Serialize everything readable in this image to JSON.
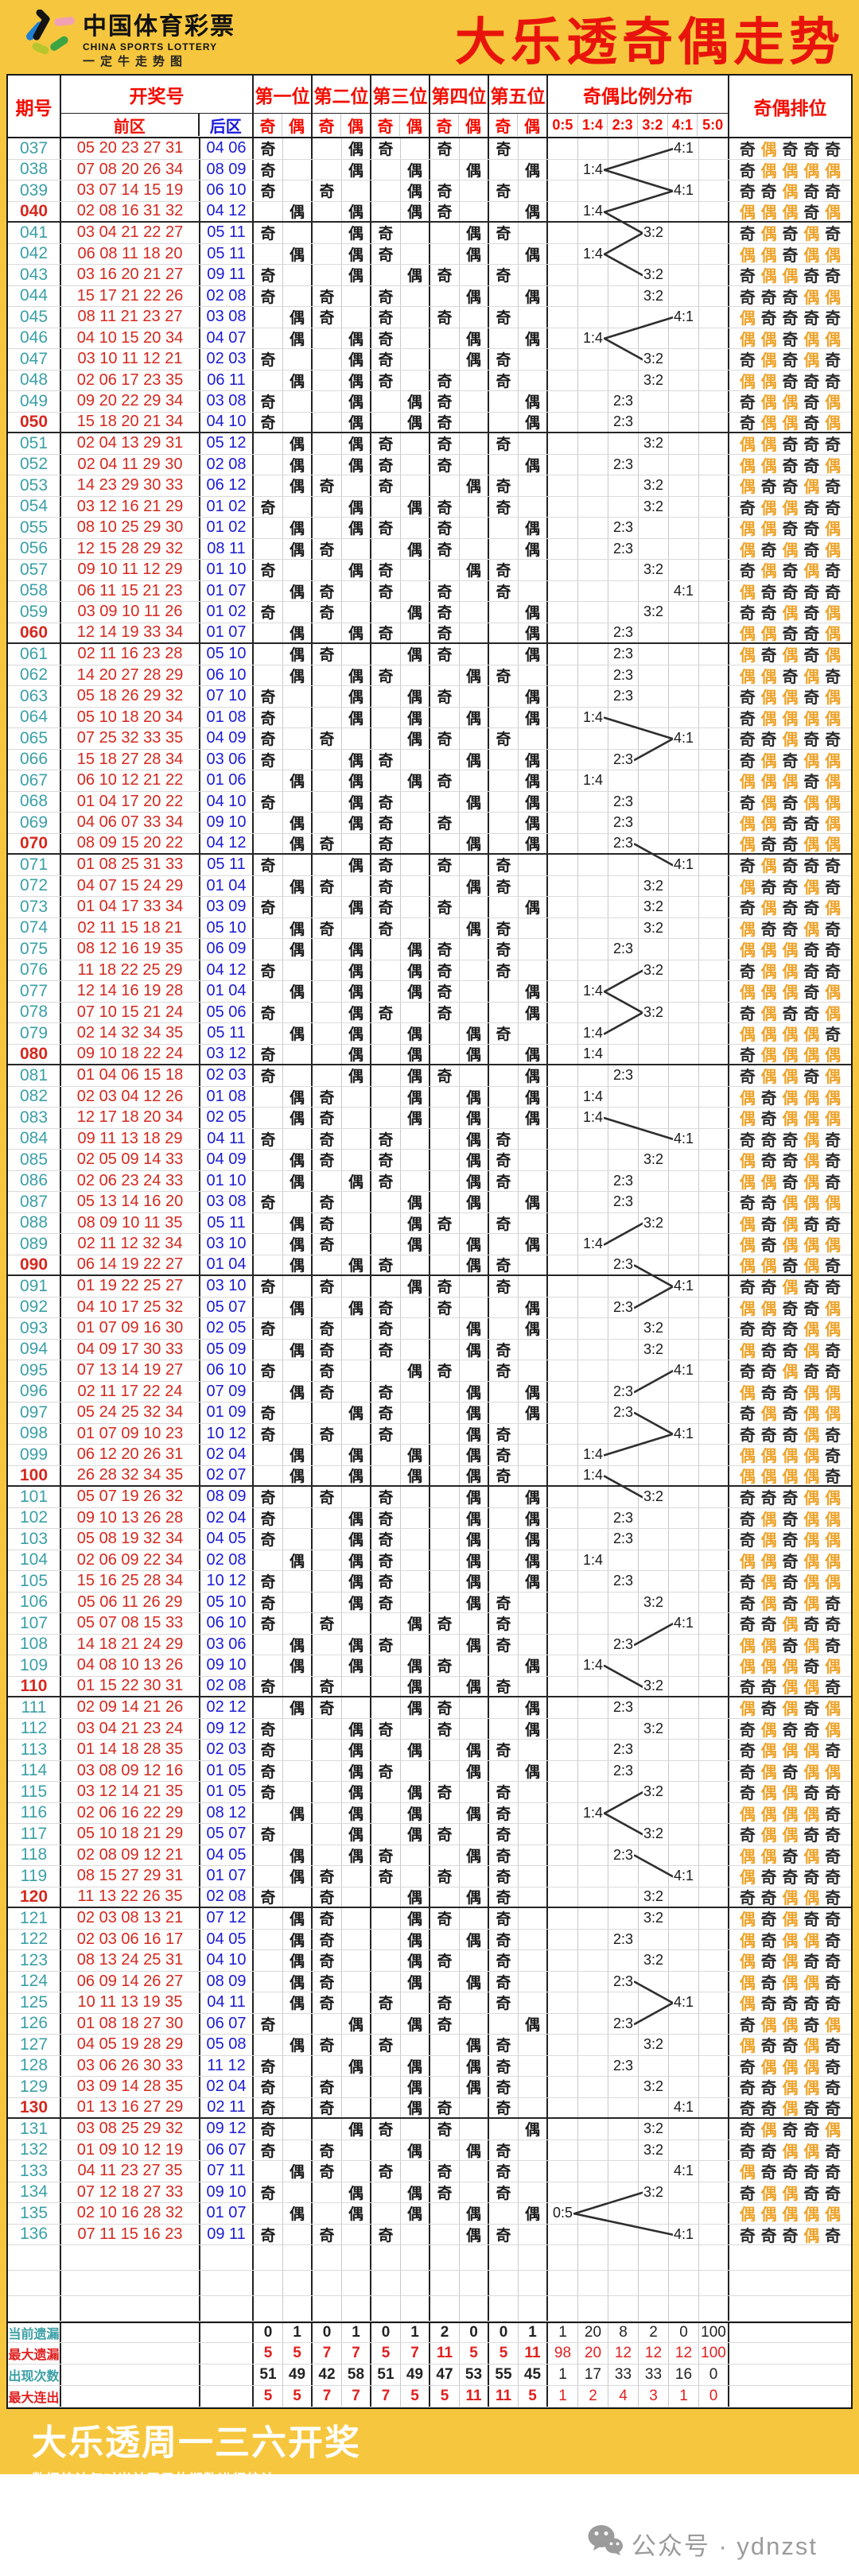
{
  "header": {
    "logo_title": "中国体育彩票",
    "logo_subtitle": "CHINA SPORTS LOTTERY",
    "logo_tagline": "一定牛走势图",
    "title": "大乐透奇偶走势"
  },
  "table": {
    "col_period": "期号",
    "col_numbers": "开奖号",
    "col_front": "前区",
    "col_back": "后区",
    "positions": [
      "第一位",
      "第二位",
      "第三位",
      "第四位",
      "第五位"
    ],
    "odd": "奇",
    "even": "偶",
    "ratio_group": "奇偶比例分布",
    "ratios": [
      "0:5",
      "1:4",
      "2:3",
      "3:2",
      "4:1",
      "5:0"
    ],
    "col_rank": "奇偶排位"
  },
  "rows": [
    {
      "p": "037",
      "f": "05 20 23 27 31",
      "b": "04 06"
    },
    {
      "p": "038",
      "f": "07 08 20 26 34",
      "b": "08 09"
    },
    {
      "p": "039",
      "f": "03 07 14 15 19",
      "b": "06 10"
    },
    {
      "p": "040",
      "f": "02 08 16 31 32",
      "b": "04 12"
    },
    {
      "p": "041",
      "f": "03 04 21 22 27",
      "b": "05 11"
    },
    {
      "p": "042",
      "f": "06 08 11 18 20",
      "b": "05 11"
    },
    {
      "p": "043",
      "f": "03 16 20 21 27",
      "b": "09 11"
    },
    {
      "p": "044",
      "f": "15 17 21 22 26",
      "b": "02 08"
    },
    {
      "p": "045",
      "f": "08 11 21 23 27",
      "b": "03 08"
    },
    {
      "p": "046",
      "f": "04 10 15 20 34",
      "b": "04 07"
    },
    {
      "p": "047",
      "f": "03 10 11 12 21",
      "b": "02 03"
    },
    {
      "p": "048",
      "f": "02 06 17 23 35",
      "b": "06 11"
    },
    {
      "p": "049",
      "f": "09 20 22 29 34",
      "b": "03 08"
    },
    {
      "p": "050",
      "f": "15 18 20 21 34",
      "b": "04 10"
    },
    {
      "p": "051",
      "f": "02 04 13 29 31",
      "b": "05 12"
    },
    {
      "p": "052",
      "f": "02 04 11 29 30",
      "b": "02 08"
    },
    {
      "p": "053",
      "f": "14 23 29 30 33",
      "b": "06 12"
    },
    {
      "p": "054",
      "f": "03 12 16 21 29",
      "b": "01 02"
    },
    {
      "p": "055",
      "f": "08 10 25 29 30",
      "b": "01 02"
    },
    {
      "p": "056",
      "f": "12 15 28 29 32",
      "b": "08 11"
    },
    {
      "p": "057",
      "f": "09 10 11 12 29",
      "b": "01 10"
    },
    {
      "p": "058",
      "f": "06 11 15 21 23",
      "b": "01 07"
    },
    {
      "p": "059",
      "f": "03 09 10 11 26",
      "b": "01 02"
    },
    {
      "p": "060",
      "f": "12 14 19 33 34",
      "b": "01 07"
    },
    {
      "p": "061",
      "f": "02 11 16 23 28",
      "b": "05 10"
    },
    {
      "p": "062",
      "f": "14 20 27 28 29",
      "b": "06 10"
    },
    {
      "p": "063",
      "f": "05 18 26 29 32",
      "b": "07 10"
    },
    {
      "p": "064",
      "f": "05 10 18 20 34",
      "b": "01 08"
    },
    {
      "p": "065",
      "f": "07 25 32 33 35",
      "b": "04 09"
    },
    {
      "p": "066",
      "f": "15 18 27 28 34",
      "b": "03 06"
    },
    {
      "p": "067",
      "f": "06 10 12 21 22",
      "b": "01 06"
    },
    {
      "p": "068",
      "f": "01 04 17 20 22",
      "b": "04 10"
    },
    {
      "p": "069",
      "f": "04 06 07 33 34",
      "b": "09 10"
    },
    {
      "p": "070",
      "f": "08 09 15 20 22",
      "b": "04 12"
    },
    {
      "p": "071",
      "f": "01 08 25 31 33",
      "b": "05 11"
    },
    {
      "p": "072",
      "f": "04 07 15 24 29",
      "b": "01 04"
    },
    {
      "p": "073",
      "f": "01 04 17 33 34",
      "b": "03 09"
    },
    {
      "p": "074",
      "f": "02 11 15 18 21",
      "b": "05 10"
    },
    {
      "p": "075",
      "f": "08 12 16 19 35",
      "b": "06 09"
    },
    {
      "p": "076",
      "f": "11 18 22 25 29",
      "b": "04 12"
    },
    {
      "p": "077",
      "f": "12 14 16 19 28",
      "b": "01 04"
    },
    {
      "p": "078",
      "f": "07 10 15 21 24",
      "b": "05 06"
    },
    {
      "p": "079",
      "f": "02 14 32 34 35",
      "b": "05 11"
    },
    {
      "p": "080",
      "f": "09 10 18 22 24",
      "b": "03 12"
    },
    {
      "p": "081",
      "f": "01 04 06 15 18",
      "b": "02 03"
    },
    {
      "p": "082",
      "f": "02 03 04 12 26",
      "b": "01 08"
    },
    {
      "p": "083",
      "f": "12 17 18 20 34",
      "b": "02 05"
    },
    {
      "p": "084",
      "f": "09 11 13 18 29",
      "b": "04 11"
    },
    {
      "p": "085",
      "f": "02 05 09 14 33",
      "b": "04 09"
    },
    {
      "p": "086",
      "f": "02 06 23 24 33",
      "b": "01 10"
    },
    {
      "p": "087",
      "f": "05 13 14 16 20",
      "b": "03 08"
    },
    {
      "p": "088",
      "f": "08 09 10 11 35",
      "b": "05 11"
    },
    {
      "p": "089",
      "f": "02 11 12 32 34",
      "b": "03 10"
    },
    {
      "p": "090",
      "f": "06 14 19 22 27",
      "b": "01 04"
    },
    {
      "p": "091",
      "f": "01 19 22 25 27",
      "b": "03 10"
    },
    {
      "p": "092",
      "f": "04 10 17 25 32",
      "b": "05 07"
    },
    {
      "p": "093",
      "f": "01 07 09 16 30",
      "b": "02 05"
    },
    {
      "p": "094",
      "f": "04 09 17 30 33",
      "b": "05 09"
    },
    {
      "p": "095",
      "f": "07 13 14 19 27",
      "b": "06 10"
    },
    {
      "p": "096",
      "f": "02 11 17 22 24",
      "b": "07 09"
    },
    {
      "p": "097",
      "f": "05 24 25 32 34",
      "b": "01 09"
    },
    {
      "p": "098",
      "f": "01 07 09 10 23",
      "b": "10 12"
    },
    {
      "p": "099",
      "f": "06 12 20 26 31",
      "b": "02 04"
    },
    {
      "p": "100",
      "f": "26 28 32 34 35",
      "b": "02 07"
    },
    {
      "p": "101",
      "f": "05 07 19 26 32",
      "b": "08 09"
    },
    {
      "p": "102",
      "f": "09 10 13 26 28",
      "b": "02 04"
    },
    {
      "p": "103",
      "f": "05 08 19 32 34",
      "b": "04 05"
    },
    {
      "p": "104",
      "f": "02 06 09 22 34",
      "b": "02 08"
    },
    {
      "p": "105",
      "f": "15 16 25 28 34",
      "b": "10 12"
    },
    {
      "p": "106",
      "f": "05 06 11 26 29",
      "b": "05 10"
    },
    {
      "p": "107",
      "f": "05 07 08 15 33",
      "b": "06 10"
    },
    {
      "p": "108",
      "f": "14 18 21 24 29",
      "b": "03 06"
    },
    {
      "p": "109",
      "f": "04 08 10 13 26",
      "b": "09 10"
    },
    {
      "p": "110",
      "f": "01 15 22 30 31",
      "b": "02 08"
    },
    {
      "p": "111",
      "f": "02 09 14 21 26",
      "b": "02 12"
    },
    {
      "p": "112",
      "f": "03 04 21 23 24",
      "b": "09 12"
    },
    {
      "p": "113",
      "f": "01 14 18 28 35",
      "b": "02 03"
    },
    {
      "p": "114",
      "f": "03 08 09 12 16",
      "b": "01 05"
    },
    {
      "p": "115",
      "f": "03 12 14 21 35",
      "b": "01 05"
    },
    {
      "p": "116",
      "f": "02 06 16 22 29",
      "b": "08 12"
    },
    {
      "p": "117",
      "f": "05 10 18 21 29",
      "b": "05 07"
    },
    {
      "p": "118",
      "f": "02 08 09 12 21",
      "b": "04 05"
    },
    {
      "p": "119",
      "f": "08 15 27 29 31",
      "b": "01 07"
    },
    {
      "p": "120",
      "f": "11 13 22 26 35",
      "b": "02 08"
    },
    {
      "p": "121",
      "f": "02 03 08 13 21",
      "b": "07 12"
    },
    {
      "p": "122",
      "f": "02 03 06 16 17",
      "b": "04 05"
    },
    {
      "p": "123",
      "f": "08 13 24 25 31",
      "b": "04 10"
    },
    {
      "p": "124",
      "f": "06 09 14 26 27",
      "b": "08 09"
    },
    {
      "p": "125",
      "f": "10 11 13 19 35",
      "b": "04 11"
    },
    {
      "p": "126",
      "f": "01 08 18 27 30",
      "b": "06 07"
    },
    {
      "p": "127",
      "f": "04 05 19 28 29",
      "b": "05 08"
    },
    {
      "p": "128",
      "f": "03 06 26 30 33",
      "b": "11 12"
    },
    {
      "p": "129",
      "f": "03 09 14 28 35",
      "b": "02 04"
    },
    {
      "p": "130",
      "f": "01 13 16 27 29",
      "b": "02 11"
    },
    {
      "p": "131",
      "f": "03 08 25 29 32",
      "b": "09 12"
    },
    {
      "p": "132",
      "f": "01 09 10 12 19",
      "b": "06 07"
    },
    {
      "p": "133",
      "f": "04 11 23 27 35",
      "b": "07 11"
    },
    {
      "p": "134",
      "f": "07 12 18 27 33",
      "b": "09 10"
    },
    {
      "p": "135",
      "f": "02 10 16 28 32",
      "b": "01 07"
    },
    {
      "p": "136",
      "f": "07 11 15 16 23",
      "b": "09 11"
    }
  ],
  "stats": [
    {
      "label": "当前遗漏",
      "color": "black",
      "values": [
        0,
        1,
        0,
        1,
        0,
        1,
        2,
        0,
        0,
        1,
        1,
        20,
        8,
        2,
        0,
        100
      ]
    },
    {
      "label": "最大遗漏",
      "color": "red",
      "values": [
        5,
        5,
        7,
        7,
        5,
        7,
        11,
        5,
        5,
        11,
        98,
        20,
        12,
        12,
        12,
        100
      ]
    },
    {
      "label": "出现次数",
      "color": "black",
      "values": [
        51,
        49,
        42,
        58,
        51,
        49,
        47,
        53,
        55,
        45,
        1,
        17,
        33,
        33,
        16,
        0
      ]
    },
    {
      "label": "最大连出",
      "color": "red",
      "values": [
        5,
        5,
        7,
        7,
        7,
        5,
        5,
        11,
        11,
        5,
        1,
        2,
        4,
        3,
        1,
        0
      ]
    }
  ],
  "footer": {
    "title": "大乐透周一三六开奖",
    "note": "数据统计仅对当前展示的期数进行统计",
    "wechat": "公众号 · ydnzst"
  },
  "colors": {
    "yellow": "#F6C73E",
    "title_red": "#E8140C",
    "header_red": "#F20D00",
    "number_red": "#D5281E",
    "number_blue": "#1B1BD5",
    "period_teal": "#3BA0A6",
    "rank_orange": "#EDA32A",
    "line_dark": "#2e2e2e"
  },
  "chart_data": {
    "type": "line",
    "title": "奇偶比例分布",
    "x_source": "rows[].p (periods 037–136)",
    "y_categories": [
      "0:5",
      "1:4",
      "2:3",
      "3:2",
      "4:1",
      "5:0"
    ],
    "values": [
      "4:1",
      "1:4",
      "4:1",
      "1:4",
      "3:2",
      "1:4",
      "3:2",
      "3:2",
      "4:1",
      "1:4",
      "3:2",
      "3:2",
      "2:3",
      "2:3",
      "3:2",
      "2:3",
      "3:2",
      "3:2",
      "2:3",
      "2:3",
      "3:2",
      "4:1",
      "3:2",
      "2:3",
      "2:3",
      "2:3",
      "2:3",
      "1:4",
      "4:1",
      "2:3",
      "1:4",
      "2:3",
      "2:3",
      "2:3",
      "4:1",
      "3:2",
      "3:2",
      "3:2",
      "2:3",
      "3:2",
      "1:4",
      "3:2",
      "1:4",
      "1:4",
      "2:3",
      "1:4",
      "1:4",
      "4:1",
      "3:2",
      "2:3",
      "2:3",
      "3:2",
      "1:4",
      "2:3",
      "4:1",
      "2:3",
      "3:2",
      "3:2",
      "4:1",
      "2:3",
      "2:3",
      "4:1",
      "1:4",
      "1:4",
      "3:2",
      "2:3",
      "2:3",
      "1:4",
      "2:3",
      "3:2",
      "4:1",
      "2:3",
      "1:4",
      "3:2",
      "2:3",
      "3:2",
      "2:3",
      "2:3",
      "3:2",
      "1:4",
      "3:2",
      "2:3",
      "4:1",
      "3:2",
      "3:2",
      "2:3",
      "3:2",
      "2:3",
      "4:1",
      "2:3",
      "3:2",
      "2:3",
      "3:2",
      "4:1",
      "3:2",
      "3:2",
      "4:1",
      "3:2",
      "0:5",
      "4:1"
    ],
    "legend_position": "none",
    "grid": true,
    "note": "line drawn between consecutive periods only when ratio column jump >= 2"
  }
}
